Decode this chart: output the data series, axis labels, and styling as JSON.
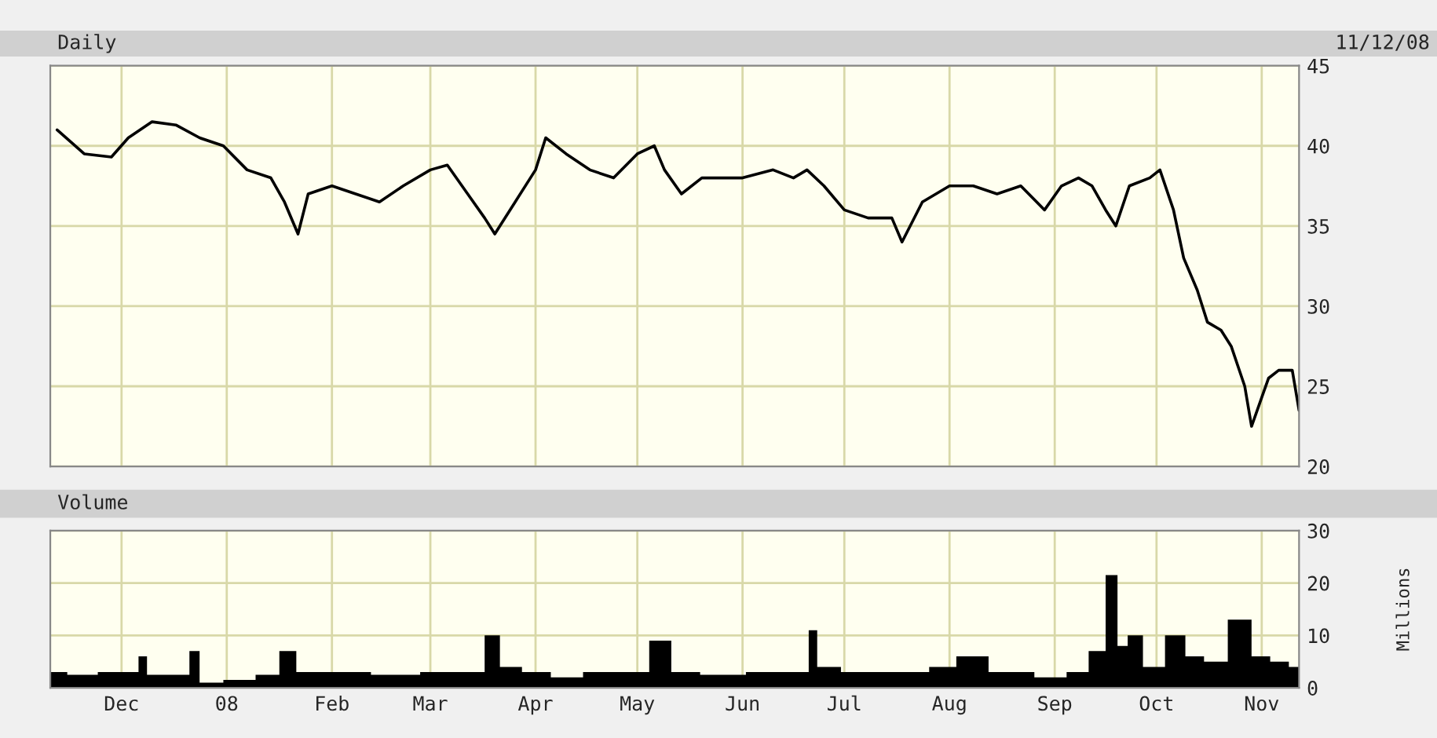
{
  "chart_data": [
    {
      "type": "line",
      "title": "Daily",
      "annotations": [
        "11/12/08"
      ],
      "series": [
        {
          "color": "#000000",
          "x": [
            "2007-11-12",
            "2007-11-20",
            "2007-11-28",
            "2007-12-03",
            "2007-12-10",
            "2007-12-17",
            "2007-12-24",
            "2007-12-31",
            "2008-01-07",
            "2008-01-14",
            "2008-01-18",
            "2008-01-22",
            "2008-01-25",
            "2008-02-01",
            "2008-02-08",
            "2008-02-15",
            "2008-02-22",
            "2008-03-01",
            "2008-03-06",
            "2008-03-12",
            "2008-03-17",
            "2008-03-20",
            "2008-03-26",
            "2008-04-01",
            "2008-04-04",
            "2008-04-10",
            "2008-04-17",
            "2008-04-24",
            "2008-05-01",
            "2008-05-06",
            "2008-05-09",
            "2008-05-14",
            "2008-05-20",
            "2008-06-01",
            "2008-06-10",
            "2008-06-16",
            "2008-06-20",
            "2008-06-25",
            "2008-07-01",
            "2008-07-08",
            "2008-07-15",
            "2008-07-18",
            "2008-07-24",
            "2008-08-01",
            "2008-08-08",
            "2008-08-15",
            "2008-08-22",
            "2008-08-29",
            "2008-09-03",
            "2008-09-08",
            "2008-09-12",
            "2008-09-16",
            "2008-09-19",
            "2008-09-23",
            "2008-09-29",
            "2008-10-02",
            "2008-10-06",
            "2008-10-09",
            "2008-10-13",
            "2008-10-16",
            "2008-10-20",
            "2008-10-23",
            "2008-10-27",
            "2008-10-29",
            "2008-11-03",
            "2008-11-06",
            "2008-11-10",
            "2008-11-12"
          ],
          "values": [
            41,
            39.5,
            39.3,
            40.5,
            41.5,
            41.3,
            40.5,
            40,
            38.5,
            38,
            36.5,
            34.5,
            37,
            37.5,
            37,
            36.5,
            37.5,
            38.5,
            38.8,
            37,
            35.5,
            34.5,
            36.5,
            38.5,
            40.5,
            39.5,
            38.5,
            38,
            39.5,
            40,
            38.5,
            37,
            38,
            38,
            38.5,
            38,
            38.5,
            37.5,
            36,
            35.5,
            35.5,
            34,
            36.5,
            37.5,
            37.5,
            37,
            37.5,
            36,
            37.5,
            38,
            37.5,
            36,
            35,
            37.5,
            38,
            38.5,
            36,
            33,
            31,
            29,
            28.5,
            27.5,
            25,
            22.5,
            25.5,
            26,
            26,
            23.5
          ]
        }
      ],
      "xlim": [
        "2007-11-10",
        "2008-11-12"
      ],
      "xticks": [
        {
          "value": "2007-12-01",
          "label": null
        },
        {
          "value": "2008-01-01",
          "label": null
        },
        {
          "value": "2008-02-01",
          "label": null
        },
        {
          "value": "2008-03-01",
          "label": null
        },
        {
          "value": "2008-04-01",
          "label": null
        },
        {
          "value": "2008-05-01",
          "label": null
        },
        {
          "value": "2008-06-01",
          "label": null
        },
        {
          "value": "2008-07-01",
          "label": null
        },
        {
          "value": "2008-08-01",
          "label": null
        },
        {
          "value": "2008-09-01",
          "label": null
        },
        {
          "value": "2008-10-01",
          "label": null
        },
        {
          "value": "2008-11-01",
          "label": null
        }
      ],
      "ylim": [
        20,
        45
      ],
      "yticks": [
        20,
        25,
        30,
        35,
        40,
        45
      ],
      "grid": true,
      "tick_labels": "y"
    },
    {
      "type": "area",
      "title": "Volume",
      "ylabel": "Millions",
      "series": [
        {
          "color": "#000000",
          "x": [
            "2007-11-10",
            "2007-11-20",
            "2007-11-28",
            "2007-12-05",
            "2007-12-07",
            "2007-12-10",
            "2007-12-20",
            "2007-12-22",
            "2007-12-26",
            "2008-01-05",
            "2008-01-14",
            "2008-01-19",
            "2008-01-24",
            "2008-02-05",
            "2008-02-20",
            "2008-03-05",
            "2008-03-15",
            "2008-03-19",
            "2008-03-24",
            "2008-04-01",
            "2008-04-10",
            "2008-04-20",
            "2008-05-01",
            "2008-05-08",
            "2008-05-14",
            "2008-05-25",
            "2008-06-10",
            "2008-06-20",
            "2008-06-21",
            "2008-06-25",
            "2008-07-05",
            "2008-07-20",
            "2008-08-01",
            "2008-08-05",
            "2008-08-20",
            "2008-09-01",
            "2008-09-08",
            "2008-09-14",
            "2008-09-18",
            "2008-09-21",
            "2008-09-24",
            "2008-09-30",
            "2008-10-07",
            "2008-10-12",
            "2008-10-18",
            "2008-10-26",
            "2008-11-01",
            "2008-11-06",
            "2008-11-12"
          ],
          "values": [
            3,
            2.5,
            3,
            3,
            6,
            2.5,
            2.5,
            7,
            1,
            1.5,
            2.5,
            7,
            3,
            3,
            2.5,
            3,
            3,
            10,
            4,
            3,
            2,
            3,
            3,
            9,
            3,
            2.5,
            3,
            3,
            11,
            4,
            3,
            3,
            4,
            6,
            3,
            2,
            3,
            7,
            21.5,
            8,
            10,
            4,
            10,
            6,
            5,
            13,
            6,
            5,
            4
          ]
        }
      ],
      "xlim": [
        "2007-11-10",
        "2008-11-12"
      ],
      "xticks": [
        {
          "value": "2007-12-01",
          "label": "Dec"
        },
        {
          "value": "2008-01-01",
          "label": "08"
        },
        {
          "value": "2008-02-01",
          "label": "Feb"
        },
        {
          "value": "2008-03-01",
          "label": "Mar"
        },
        {
          "value": "2008-04-01",
          "label": "Apr"
        },
        {
          "value": "2008-05-01",
          "label": "May"
        },
        {
          "value": "2008-06-01",
          "label": "Jun"
        },
        {
          "value": "2008-07-01",
          "label": "Jul"
        },
        {
          "value": "2008-08-01",
          "label": "Aug"
        },
        {
          "value": "2008-09-01",
          "label": "Sep"
        },
        {
          "value": "2008-10-01",
          "label": "Oct"
        },
        {
          "value": "2008-11-01",
          "label": "Nov"
        }
      ],
      "ylim": [
        0,
        30
      ],
      "yticks": [
        0,
        10,
        20,
        30
      ],
      "grid": true
    }
  ]
}
